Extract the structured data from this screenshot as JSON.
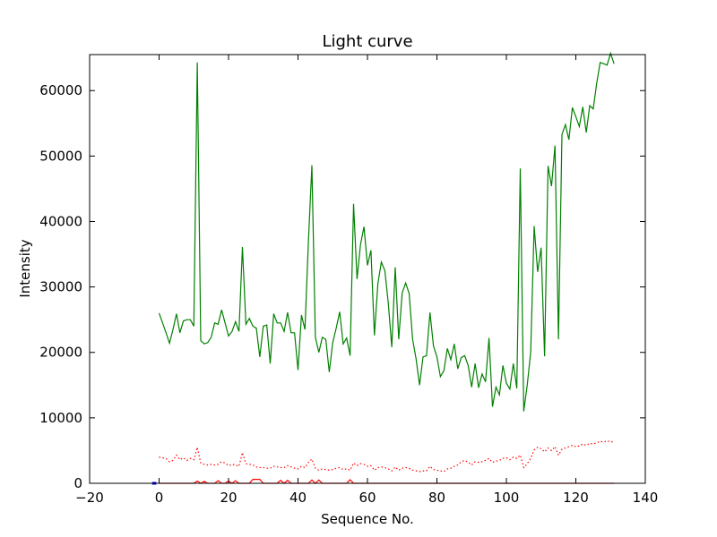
{
  "chart_data": {
    "type": "line",
    "title": "Light curve",
    "xlabel": "Sequence No.",
    "ylabel": "Intensity",
    "xlim": [
      -20,
      140
    ],
    "ylim": [
      0,
      65500
    ],
    "x_ticks": [
      -20,
      0,
      20,
      40,
      60,
      80,
      100,
      120,
      140
    ],
    "y_ticks": [
      0,
      10000,
      20000,
      30000,
      40000,
      50000,
      60000
    ],
    "grid": false,
    "legend": "none",
    "series": [
      {
        "color": "#008000",
        "style": "solid",
        "x": [
          0,
          1,
          2,
          3,
          4,
          5,
          6,
          7,
          8,
          9,
          10,
          11,
          12,
          13,
          14,
          15,
          16,
          17,
          18,
          19,
          20,
          21,
          22,
          23,
          24,
          25,
          26,
          27,
          28,
          29,
          30,
          31,
          32,
          33,
          34,
          35,
          36,
          37,
          38,
          39,
          40,
          41,
          42,
          43,
          44,
          45,
          46,
          47,
          48,
          49,
          50,
          51,
          52,
          53,
          54,
          55,
          56,
          57,
          58,
          59,
          60,
          61,
          62,
          63,
          64,
          65,
          66,
          67,
          68,
          69,
          70,
          71,
          72,
          73,
          74,
          75,
          76,
          77,
          78,
          79,
          80,
          81,
          82,
          83,
          84,
          85,
          86,
          87,
          88,
          89,
          90,
          91,
          92,
          93,
          94,
          95,
          96,
          97,
          98,
          99,
          100,
          101,
          102,
          103,
          104,
          105,
          106,
          107,
          108,
          109,
          110,
          111,
          112,
          113,
          114,
          115,
          116,
          117,
          118,
          119,
          120,
          121,
          122,
          123,
          124,
          125,
          126,
          127,
          128,
          129,
          130,
          131
        ],
        "y": [
          26000,
          24500,
          23000,
          21400,
          23500,
          25900,
          23000,
          24800,
          25000,
          25000,
          24000,
          64300,
          21800,
          21300,
          21500,
          22300,
          24500,
          24300,
          26500,
          24500,
          22500,
          23200,
          24700,
          23200,
          36100,
          24300,
          25200,
          24000,
          23700,
          19300,
          24000,
          24200,
          18300,
          25900,
          24500,
          24500,
          23200,
          26100,
          23000,
          23000,
          17300,
          25700,
          23500,
          37000,
          48600,
          22300,
          20000,
          22300,
          22000,
          17000,
          21500,
          23700,
          26200,
          21300,
          22200,
          19500,
          42700,
          31200,
          36500,
          39200,
          33300,
          35600,
          22600,
          30500,
          33800,
          32500,
          27500,
          20800,
          33000,
          22000,
          29100,
          30600,
          29000,
          22000,
          19000,
          15000,
          19300,
          19500,
          26100,
          21000,
          19300,
          16300,
          17200,
          20600,
          18900,
          21300,
          17500,
          19200,
          19500,
          18000,
          14700,
          18300,
          14600,
          16700,
          15500,
          22200,
          11700,
          14700,
          13500,
          18000,
          15300,
          14400,
          18300,
          14500,
          48100,
          11000,
          15000,
          20000,
          39300,
          32300,
          36000,
          19400,
          48500,
          45400,
          51600,
          22000,
          53300,
          54800,
          52500,
          57400,
          56000,
          54500,
          57500,
          53600,
          57700,
          57200,
          61100,
          64300,
          64100,
          63900,
          65700,
          64100
        ]
      },
      {
        "color": "#ff0000",
        "style": "dotted",
        "x": [
          0,
          1,
          2,
          3,
          4,
          5,
          6,
          7,
          8,
          9,
          10,
          11,
          12,
          13,
          14,
          15,
          16,
          17,
          18,
          19,
          20,
          21,
          22,
          23,
          24,
          25,
          26,
          27,
          28,
          29,
          30,
          31,
          32,
          33,
          34,
          35,
          36,
          37,
          38,
          39,
          40,
          41,
          42,
          43,
          44,
          45,
          46,
          47,
          48,
          49,
          50,
          51,
          52,
          53,
          54,
          55,
          56,
          57,
          58,
          59,
          60,
          61,
          62,
          63,
          64,
          65,
          66,
          67,
          68,
          69,
          70,
          71,
          72,
          73,
          74,
          75,
          76,
          77,
          78,
          79,
          80,
          81,
          82,
          83,
          84,
          85,
          86,
          87,
          88,
          89,
          90,
          91,
          92,
          93,
          94,
          95,
          96,
          97,
          98,
          99,
          100,
          101,
          102,
          103,
          104,
          105,
          106,
          107,
          108,
          109,
          110,
          111,
          112,
          113,
          114,
          115,
          116,
          117,
          118,
          119,
          120,
          121,
          122,
          123,
          124,
          125,
          126,
          127,
          128,
          129,
          130,
          131
        ],
        "y": [
          4000,
          3900,
          3800,
          3300,
          3500,
          4300,
          3600,
          3900,
          3500,
          3800,
          3600,
          5500,
          3100,
          2900,
          2800,
          2900,
          2800,
          2900,
          3300,
          3100,
          2700,
          2900,
          2800,
          2600,
          4700,
          3000,
          2900,
          2800,
          2500,
          2400,
          2400,
          2300,
          2300,
          2600,
          2500,
          2400,
          2400,
          2700,
          2500,
          2300,
          2200,
          2600,
          2400,
          3200,
          3700,
          2300,
          2000,
          2200,
          2100,
          2000,
          2100,
          2300,
          2400,
          2100,
          2200,
          2000,
          3100,
          2700,
          3000,
          2900,
          2600,
          2700,
          2000,
          2400,
          2500,
          2400,
          2200,
          1900,
          2500,
          2000,
          2300,
          2400,
          2300,
          2000,
          1900,
          1800,
          1900,
          1900,
          2600,
          2100,
          2000,
          1900,
          1800,
          2200,
          2300,
          2600,
          2800,
          3300,
          3500,
          3200,
          2800,
          3300,
          3200,
          3300,
          3500,
          3800,
          3200,
          3400,
          3500,
          3800,
          3900,
          3600,
          4000,
          3800,
          4300,
          2400,
          3000,
          3800,
          5100,
          5500,
          5300,
          4800,
          5400,
          5000,
          5600,
          4300,
          5200,
          5400,
          5600,
          5800,
          5600,
          5700,
          6000,
          5800,
          6100,
          6000,
          6200,
          6400,
          6300,
          6500,
          6300,
          6400
        ]
      },
      {
        "color": "#ff0000",
        "style": "solid",
        "x": [
          0,
          9,
          10,
          11,
          12,
          13,
          14,
          15,
          16,
          17,
          18,
          19,
          20,
          21,
          22,
          23,
          24,
          25,
          26,
          27,
          28,
          29,
          30,
          31,
          32,
          33,
          34,
          35,
          36,
          37,
          38,
          39,
          40,
          41,
          42,
          43,
          44,
          45,
          46,
          47,
          48,
          54,
          55,
          56,
          57,
          131
        ],
        "y": [
          0,
          0,
          0,
          350,
          0,
          300,
          0,
          0,
          0,
          400,
          0,
          0,
          350,
          0,
          400,
          0,
          0,
          0,
          0,
          600,
          600,
          600,
          0,
          0,
          0,
          0,
          0,
          450,
          0,
          450,
          0,
          0,
          0,
          0,
          0,
          0,
          500,
          0,
          500,
          0,
          0,
          0,
          550,
          0,
          0,
          0
        ]
      },
      {
        "color": "#0000ff",
        "style": "solid",
        "x": [
          -2,
          -0.8
        ],
        "y": [
          0,
          0
        ]
      }
    ]
  }
}
